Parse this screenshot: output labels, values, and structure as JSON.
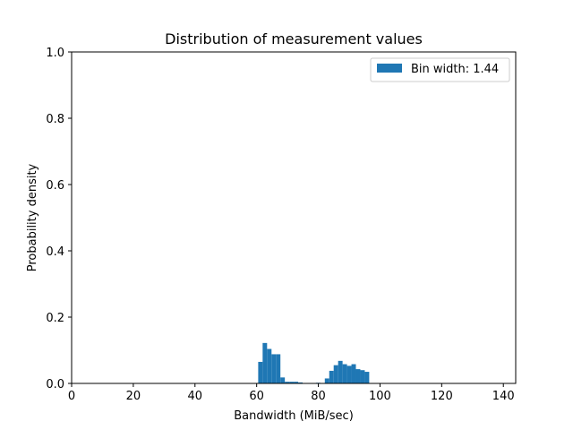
{
  "chart_data": {
    "type": "bar",
    "title": "Distribution of measurement values",
    "xlabel": "Bandwidth (MiB/sec)",
    "ylabel": "Probability density",
    "xlim": [
      0,
      144
    ],
    "ylim": [
      0,
      1.0
    ],
    "xticks": [
      0,
      20,
      40,
      60,
      80,
      100,
      120,
      140
    ],
    "xtick_labels": [
      "0",
      "20",
      "40",
      "60",
      "80",
      "100",
      "120",
      "140"
    ],
    "yticks": [
      0.0,
      0.2,
      0.4,
      0.6,
      0.8,
      1.0
    ],
    "ytick_labels": [
      "0.0",
      "0.2",
      "0.4",
      "0.6",
      "0.8",
      "1.0"
    ],
    "grid": false,
    "legend_position": "top-right",
    "series": [
      {
        "name": "Bin width: 1.44",
        "color": "#1f77b4",
        "bin_width": 1.44,
        "bin_starts": [
          60.5,
          61.94,
          63.38,
          64.82,
          66.26,
          67.7,
          69.14,
          70.58,
          72.02,
          73.46,
          74.9,
          76.34,
          77.78,
          79.22,
          80.66,
          82.1,
          83.54,
          84.98,
          86.42,
          87.86,
          89.3,
          90.74,
          92.18,
          93.62,
          95.06
        ],
        "values": [
          0.065,
          0.122,
          0.104,
          0.088,
          0.088,
          0.018,
          0.005,
          0.005,
          0.005,
          0.003,
          0.0,
          0.0,
          0.0,
          0.002,
          0.0,
          0.015,
          0.038,
          0.055,
          0.068,
          0.058,
          0.053,
          0.058,
          0.043,
          0.04,
          0.035
        ]
      }
    ]
  }
}
